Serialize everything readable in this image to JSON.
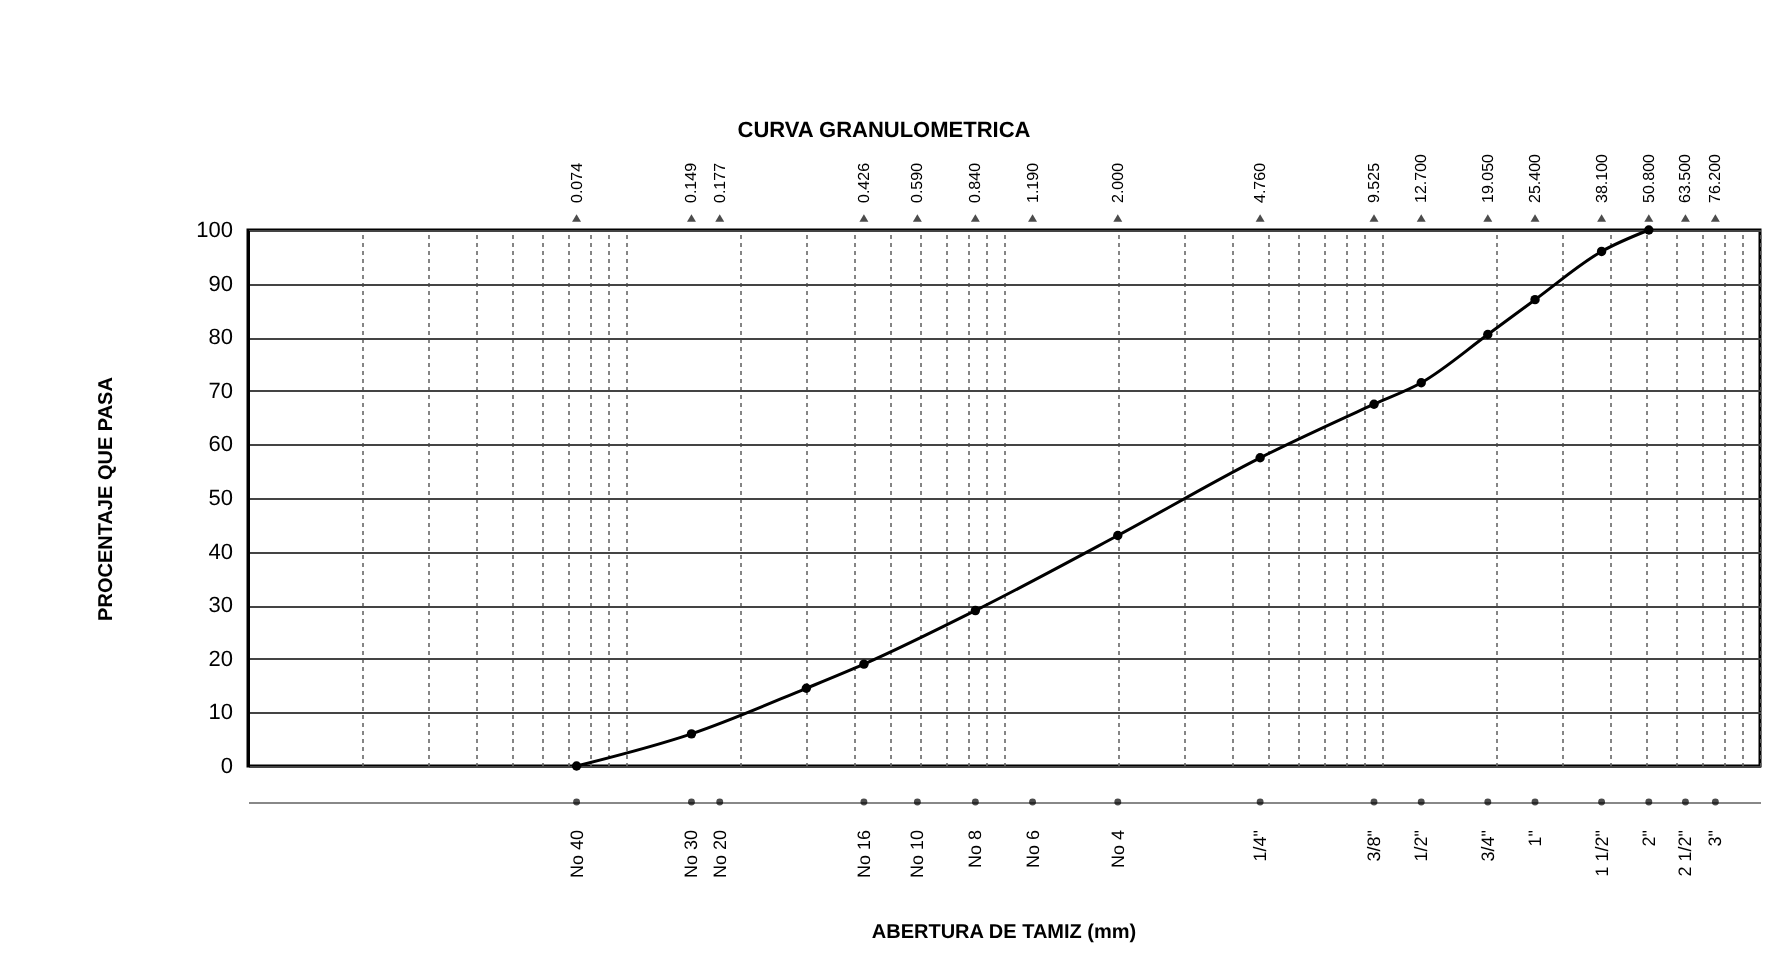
{
  "chart_data": {
    "type": "line",
    "title": "CURVA GRANULOMETRICA",
    "ylabel": "PROCENTAJE QUE PASA",
    "x": [
      0.074,
      0.149,
      0.3,
      0.426,
      0.84,
      2.0,
      4.76,
      9.525,
      12.7,
      19.05,
      25.4,
      38.1,
      50.8
    ],
    "series": [
      {
        "color": "#000000",
        "values": [
          0,
          6,
          14.5,
          19,
          29,
          43,
          57.5,
          67.5,
          71.5,
          80.5,
          87,
          96,
          100
        ]
      }
    ],
    "log": "x",
    "xlim": [
      0.01,
      100
    ],
    "ylim": [
      0,
      100
    ],
    "yticks": [
      0,
      10,
      20,
      30,
      40,
      50,
      60,
      70,
      80,
      90,
      100
    ],
    "xticks": [
      {
        "value": 0.074,
        "label": "0.074"
      },
      {
        "value": 0.149,
        "label": "0.149"
      },
      {
        "value": 0.177,
        "label": "0.177"
      },
      {
        "value": 0.426,
        "label": "0.426"
      },
      {
        "value": 0.59,
        "label": "0.590"
      },
      {
        "value": 0.84,
        "label": "0.840"
      },
      {
        "value": 1.19,
        "label": "1.190"
      },
      {
        "value": 2.0,
        "label": "2.000"
      },
      {
        "value": 4.76,
        "label": "4.760"
      },
      {
        "value": 9.525,
        "label": "9.525"
      },
      {
        "value": 12.7,
        "label": "12.700"
      },
      {
        "value": 19.05,
        "label": "19.050"
      },
      {
        "value": 25.4,
        "label": "25.400"
      },
      {
        "value": 38.1,
        "label": "38.100"
      },
      {
        "value": 50.8,
        "label": "50.800"
      },
      {
        "value": 63.5,
        "label": "63.500"
      },
      {
        "value": 76.2,
        "label": "76.200"
      }
    ],
    "annotations": [
      "No 40",
      "No 30",
      "No 20",
      "No 16",
      "No 10",
      "No 8",
      "No 6",
      "No 4",
      "1/4\"",
      "3/8\"",
      "1/2\"",
      "3/4\"",
      "1\"",
      "1 1/2\"",
      "2\"",
      "2 1/2\"",
      "3\"",
      "ABERTURA DE TAMIZ (mm)"
    ],
    "grid": true,
    "marker": "circle",
    "line_style": "solid",
    "legend": false
  }
}
